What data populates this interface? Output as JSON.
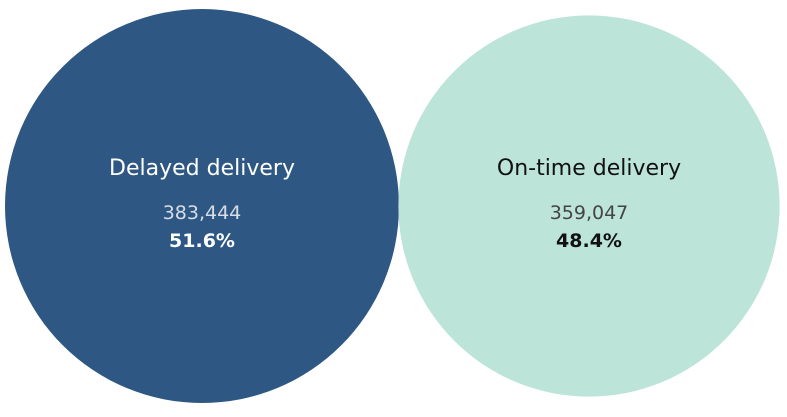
{
  "chart_data": {
    "type": "bubble",
    "title": "",
    "series": [
      {
        "name": "Delayed delivery",
        "value": 383444,
        "value_label": "383,444",
        "percent": 51.6,
        "percent_label": "51.6%",
        "color": "#2E5883",
        "text_color": "#ffffff",
        "value_text_color": "#d6dde7"
      },
      {
        "name": "On-time delivery",
        "value": 359047,
        "value_label": "359,047",
        "percent": 48.4,
        "percent_label": "48.4%",
        "color": "#BCE4D8",
        "text_color": "#111111",
        "value_text_color": "#444444"
      }
    ]
  }
}
